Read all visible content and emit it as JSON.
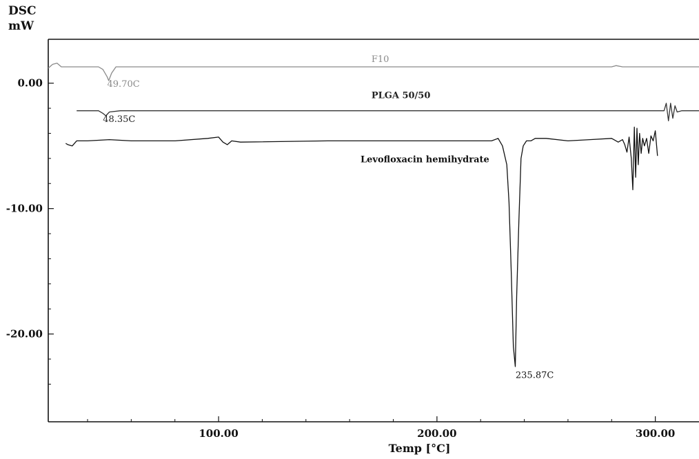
{
  "chart_data": {
    "type": "line",
    "ylabel_line1": "DSC",
    "ylabel_line2": "mW",
    "xlabel": "Temp   [°C]",
    "xlim": [
      22,
      320
    ],
    "ylim": [
      -27,
      3.5
    ],
    "x_ticks": [
      100,
      200,
      300
    ],
    "x_tick_labels": [
      "100.00",
      "200.00",
      "300.00"
    ],
    "y_ticks": [
      0,
      -10,
      -20
    ],
    "y_tick_labels": [
      "0.00",
      "-10.00",
      "-20.00"
    ],
    "series": [
      {
        "name": "F10",
        "color": "#8a8a8a",
        "x": [
          22,
          24,
          26,
          28,
          30,
          35,
          45,
          47,
          49,
          49.7,
          51,
          53,
          60,
          100,
          150,
          200,
          250,
          280,
          282,
          285,
          300,
          320
        ],
        "y": [
          1.2,
          1.5,
          1.6,
          1.3,
          1.3,
          1.3,
          1.3,
          1.1,
          0.5,
          0.2,
          0.8,
          1.3,
          1.3,
          1.3,
          1.3,
          1.3,
          1.3,
          1.3,
          1.4,
          1.3,
          1.3,
          1.3
        ]
      },
      {
        "name": "PLGA 50/50",
        "color": "#333333",
        "x": [
          35,
          45,
          47,
          48.35,
          50,
          55,
          100,
          150,
          200,
          250,
          300,
          304,
          305,
          306,
          307,
          308,
          309,
          310,
          312,
          320
        ],
        "y": [
          -2.2,
          -2.2,
          -2.4,
          -2.6,
          -2.3,
          -2.2,
          -2.2,
          -2.2,
          -2.2,
          -2.2,
          -2.2,
          -2.2,
          -1.6,
          -3.0,
          -1.6,
          -2.8,
          -1.8,
          -2.3,
          -2.2,
          -2.2
        ]
      },
      {
        "name": "Levofloxacin hemihydrate",
        "color": "#111111",
        "x": [
          30,
          31,
          33,
          35,
          40,
          50,
          60,
          80,
          95,
          100,
          102,
          104,
          106,
          110,
          150,
          200,
          225,
          228,
          230,
          232,
          233,
          234,
          235,
          235.87,
          236.5,
          237.5,
          238.5,
          239.5,
          241,
          243,
          245,
          250,
          260,
          270,
          280,
          283,
          285,
          286,
          287,
          288,
          289,
          289.7,
          290.4,
          291,
          291.6,
          292.2,
          292.8,
          293.5,
          294.2,
          295,
          296,
          297,
          298,
          299,
          300,
          301
        ],
        "y": [
          -4.8,
          -4.9,
          -5.0,
          -4.6,
          -4.6,
          -4.5,
          -4.6,
          -4.6,
          -4.4,
          -4.3,
          -4.7,
          -4.9,
          -4.6,
          -4.7,
          -4.6,
          -4.6,
          -4.6,
          -4.4,
          -5.0,
          -6.5,
          -9.5,
          -15.0,
          -21.0,
          -22.6,
          -17.0,
          -11.0,
          -6.0,
          -5.0,
          -4.6,
          -4.6,
          -4.4,
          -4.4,
          -4.6,
          -4.5,
          -4.4,
          -4.7,
          -4.5,
          -4.9,
          -5.5,
          -4.3,
          -6.0,
          -8.5,
          -3.5,
          -7.5,
          -3.6,
          -6.5,
          -4.0,
          -5.6,
          -4.4,
          -5.0,
          -4.4,
          -5.6,
          -4.2,
          -4.6,
          -3.8,
          -5.8
        ]
      }
    ],
    "annotations": [
      {
        "text": "F10",
        "x": 170,
        "y": 1.7,
        "color": "#8a8a8a"
      },
      {
        "text": "49.70C",
        "x": 49,
        "y": -0.3,
        "color": "#8a8a8a"
      },
      {
        "text": "PLGA 50/50",
        "x": 170,
        "y": -1.2,
        "color": "#222222"
      },
      {
        "text": "48.35C",
        "x": 47,
        "y": -3.1,
        "color": "#222222"
      },
      {
        "text": "Levofloxacin hemihydrate",
        "x": 165,
        "y": -6.3,
        "color": "#111111"
      },
      {
        "text": "235.87C",
        "x": 236,
        "y": -23.5,
        "color": "#111111"
      }
    ]
  }
}
